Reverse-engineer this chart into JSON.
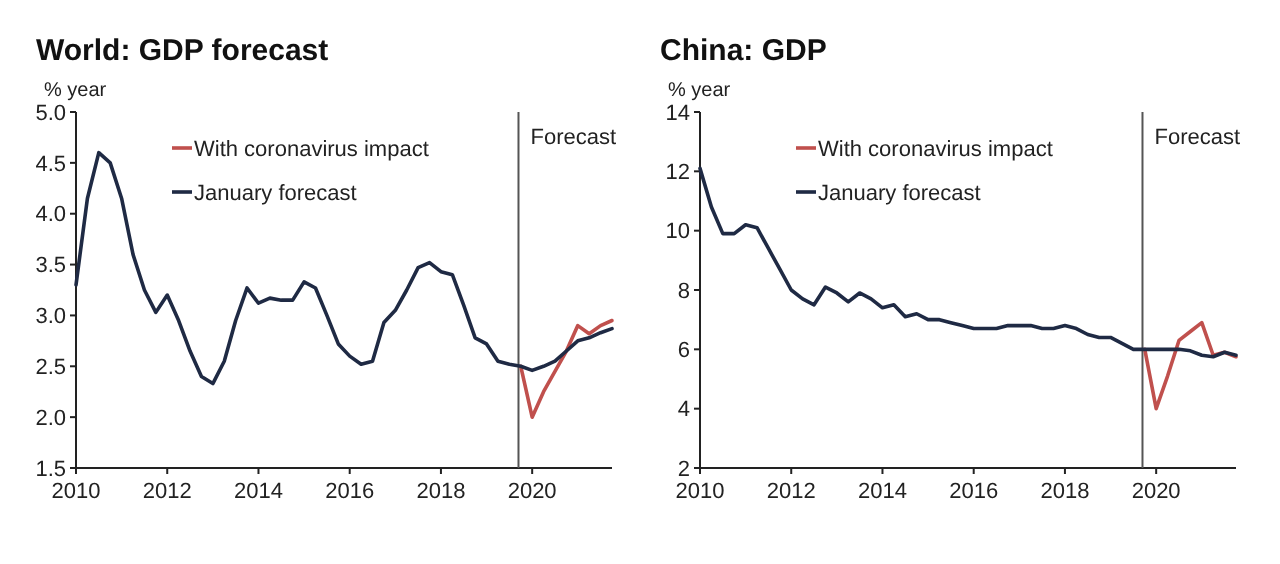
{
  "chart_data": [
    {
      "type": "line",
      "title": "World: GDP forecast",
      "ylabel": "% year",
      "legend": "top left",
      "grid": false,
      "marker": "none",
      "line_style": "solid",
      "x": [
        2010,
        2010.25,
        2010.5,
        2010.75,
        2011,
        2011.25,
        2011.5,
        2011.75,
        2012,
        2012.25,
        2012.5,
        2012.75,
        2013,
        2013.25,
        2013.5,
        2013.75,
        2014,
        2014.25,
        2014.5,
        2014.75,
        2015,
        2015.25,
        2015.5,
        2015.75,
        2016,
        2016.25,
        2016.5,
        2016.75,
        2017,
        2017.25,
        2017.5,
        2017.75,
        2018,
        2018.25,
        2018.5,
        2018.75,
        2019,
        2019.25,
        2019.5,
        2019.75,
        2020,
        2020.25,
        2020.5,
        2020.75,
        2021,
        2021.25,
        2021.5,
        2021.75
      ],
      "xlim": [
        2010,
        2021.75
      ],
      "xticks": [
        2010,
        2012,
        2014,
        2016,
        2018,
        2020
      ],
      "ylim": [
        1.5,
        5
      ],
      "yticks": [
        {
          "value": 1.5,
          "label": "1.5"
        },
        {
          "value": 2,
          "label": "2.0"
        },
        {
          "value": 2.5,
          "label": "2.5"
        },
        {
          "value": 3,
          "label": "3.0"
        },
        {
          "value": 3.5,
          "label": "3.5"
        },
        {
          "value": 4,
          "label": "4.0"
        },
        {
          "value": 4.5,
          "label": "4.5"
        },
        {
          "value": 5,
          "label": "5.0"
        }
      ],
      "series": [
        {
          "name": "With coronavirus impact",
          "color": "#c0504d",
          "values": [
            null,
            null,
            null,
            null,
            null,
            null,
            null,
            null,
            null,
            null,
            null,
            null,
            null,
            null,
            null,
            null,
            null,
            null,
            null,
            null,
            null,
            null,
            null,
            null,
            null,
            null,
            null,
            null,
            null,
            null,
            null,
            null,
            null,
            null,
            null,
            null,
            null,
            null,
            null,
            2.5,
            2.0,
            2.25,
            2.45,
            2.65,
            2.9,
            2.82,
            2.9,
            2.95
          ]
        },
        {
          "name": "January forecast",
          "color": "#1f2a44",
          "values": [
            3.3,
            4.15,
            4.6,
            4.5,
            4.15,
            3.6,
            3.25,
            3.03,
            3.2,
            2.95,
            2.65,
            2.4,
            2.33,
            2.55,
            2.95,
            3.27,
            3.12,
            3.17,
            3.15,
            3.15,
            3.33,
            3.27,
            3.0,
            2.72,
            2.6,
            2.52,
            2.55,
            2.93,
            3.05,
            3.25,
            3.47,
            3.52,
            3.43,
            3.4,
            3.1,
            2.78,
            2.72,
            2.55,
            2.52,
            2.5,
            2.46,
            2.5,
            2.55,
            2.65,
            2.75,
            2.78,
            2.83,
            2.87
          ]
        }
      ],
      "ref_lines": [
        {
          "axis": "x",
          "value": 2019.7,
          "label": "Forecast",
          "color": "#555555"
        }
      ]
    },
    {
      "type": "line",
      "title": "China: GDP",
      "ylabel": "% year",
      "legend": "top left",
      "grid": false,
      "marker": "none",
      "line_style": "solid",
      "x": [
        2010,
        2010.25,
        2010.5,
        2010.75,
        2011,
        2011.25,
        2011.5,
        2011.75,
        2012,
        2012.25,
        2012.5,
        2012.75,
        2013,
        2013.25,
        2013.5,
        2013.75,
        2014,
        2014.25,
        2014.5,
        2014.75,
        2015,
        2015.25,
        2015.5,
        2015.75,
        2016,
        2016.25,
        2016.5,
        2016.75,
        2017,
        2017.25,
        2017.5,
        2017.75,
        2018,
        2018.25,
        2018.5,
        2018.75,
        2019,
        2019.25,
        2019.5,
        2019.75,
        2020,
        2020.25,
        2020.5,
        2020.75,
        2021,
        2021.25,
        2021.5,
        2021.75
      ],
      "xlim": [
        2010,
        2021.75
      ],
      "xticks": [
        2010,
        2012,
        2014,
        2016,
        2018,
        2020
      ],
      "ylim": [
        2,
        14
      ],
      "yticks": [
        2,
        4,
        6,
        8,
        10,
        12,
        14
      ],
      "series": [
        {
          "name": "With coronavirus impact",
          "color": "#c0504d",
          "values": [
            null,
            null,
            null,
            null,
            null,
            null,
            null,
            null,
            null,
            null,
            null,
            null,
            null,
            null,
            null,
            null,
            null,
            null,
            null,
            null,
            null,
            null,
            null,
            null,
            null,
            null,
            null,
            null,
            null,
            null,
            null,
            null,
            null,
            null,
            null,
            null,
            null,
            null,
            null,
            6.0,
            4.0,
            5.1,
            6.3,
            6.6,
            6.9,
            5.8,
            5.9,
            5.75
          ]
        },
        {
          "name": "January forecast",
          "color": "#1f2a44",
          "values": [
            12.1,
            10.8,
            9.9,
            9.9,
            10.2,
            10.1,
            9.4,
            8.7,
            8.0,
            7.7,
            7.5,
            8.1,
            7.9,
            7.6,
            7.9,
            7.7,
            7.4,
            7.5,
            7.1,
            7.2,
            7.0,
            7.0,
            6.9,
            6.8,
            6.7,
            6.7,
            6.7,
            6.8,
            6.8,
            6.8,
            6.7,
            6.7,
            6.8,
            6.7,
            6.5,
            6.4,
            6.4,
            6.2,
            6.0,
            6.0,
            6.0,
            6.0,
            6.0,
            5.95,
            5.8,
            5.75,
            5.9,
            5.8
          ]
        }
      ],
      "ref_lines": [
        {
          "axis": "x",
          "value": 2019.7,
          "label": "Forecast",
          "color": "#555555"
        }
      ]
    }
  ]
}
